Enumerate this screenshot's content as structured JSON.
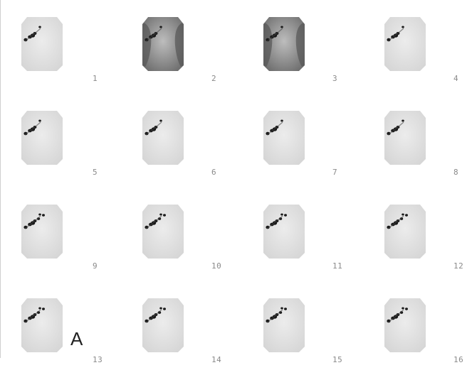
{
  "panel": {
    "label": "A"
  },
  "frames": [
    {
      "number": "1",
      "tone": "light"
    },
    {
      "number": "2",
      "tone": "dark"
    },
    {
      "number": "3",
      "tone": "dark"
    },
    {
      "number": "4",
      "tone": "light"
    },
    {
      "number": "5",
      "tone": "light"
    },
    {
      "number": "6",
      "tone": "light"
    },
    {
      "number": "7",
      "tone": "light"
    },
    {
      "number": "8",
      "tone": "light"
    },
    {
      "number": "9",
      "tone": "light"
    },
    {
      "number": "10",
      "tone": "light"
    },
    {
      "number": "11",
      "tone": "light"
    },
    {
      "number": "12",
      "tone": "light"
    },
    {
      "number": "13",
      "tone": "light"
    },
    {
      "number": "14",
      "tone": "light"
    },
    {
      "number": "15",
      "tone": "light"
    },
    {
      "number": "16",
      "tone": "light"
    }
  ]
}
